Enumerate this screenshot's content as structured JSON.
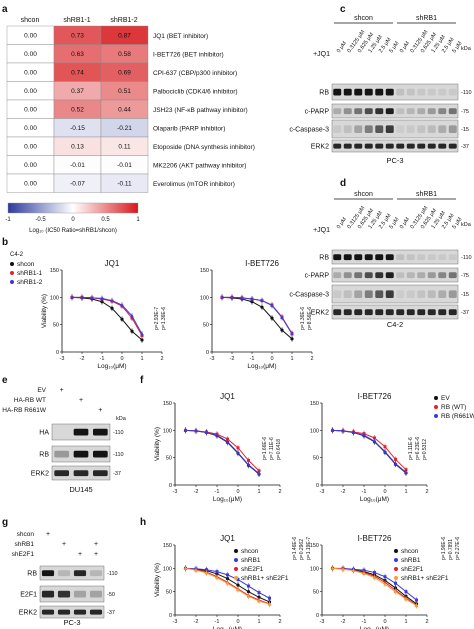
{
  "heatmap": {
    "panel": "a",
    "columns": [
      "shcon",
      "shRB1-1",
      "shRB1-2"
    ],
    "rows": [
      {
        "drug": "JQ1 (BET inhibitor)",
        "values": [
          "0.00",
          "0.73",
          "0.87"
        ],
        "num": [
          0,
          0.73,
          0.87
        ]
      },
      {
        "drug": "I-BET726 (BET inhibitor)",
        "values": [
          "0.00",
          "0.63",
          "0.58"
        ],
        "num": [
          0,
          0.63,
          0.58
        ]
      },
      {
        "drug": "CPI-637 (CBP/p300 inhibitor)",
        "values": [
          "0.00",
          "0.74",
          "0.69"
        ],
        "num": [
          0,
          0.74,
          0.69
        ]
      },
      {
        "drug": "Palbociclib (CDK4/6 inhibitor)",
        "values": [
          "0.00",
          "0.37",
          "0.51"
        ],
        "num": [
          0,
          0.37,
          0.51
        ]
      },
      {
        "drug": "JSH23 (NF-κB pathway inhibitor)",
        "values": [
          "0.00",
          "0.52",
          "0.44"
        ],
        "num": [
          0,
          0.52,
          0.44
        ]
      },
      {
        "drug": "Olaparib (PARP inhibitor)",
        "values": [
          "0.00",
          "-0.15",
          "-0.21"
        ],
        "num": [
          0,
          -0.15,
          -0.21
        ]
      },
      {
        "drug": "Etoposide (DNA synthesis inhibitor)",
        "values": [
          "0.00",
          "0.13",
          "0.11"
        ],
        "num": [
          0,
          0.13,
          0.11
        ]
      },
      {
        "drug": "MK2206 (AKT pathway inhibitor)",
        "values": [
          "0.00",
          "-0.01",
          "-0.01"
        ],
        "num": [
          0,
          -0.01,
          -0.01
        ]
      },
      {
        "drug": "Everolimus (mTOR inhibitor)",
        "values": [
          "0.00",
          "-0.07",
          "-0.11"
        ],
        "num": [
          0,
          -0.07,
          -0.11
        ]
      }
    ],
    "colorbar_ticks": [
      "-1",
      "-0.5",
      "0",
      "0.5",
      "1"
    ],
    "colorbar_label": "Log₁₀ (IC50 Ratio=shRB1/shcon)",
    "colors": {
      "neg": "#2b3a9c",
      "mid": "#ffffff",
      "pos": "#d7191c"
    }
  },
  "blot_c": {
    "panel": "c",
    "groups": [
      "shcon",
      "shRB1"
    ],
    "doses": [
      "0 μM",
      "0.3125 μM",
      "0.625 μM",
      "1.25 μM",
      "2.5 μM",
      "5 μM"
    ],
    "treatment": "+JQ1",
    "bands": [
      "RB",
      "c-PARP",
      "c-Caspase-3",
      "ERK2"
    ],
    "kda": [
      "kDa",
      "110",
      "75",
      "15",
      "37"
    ],
    "cell_line": "PC-3"
  },
  "blot_d": {
    "panel": "d",
    "groups": [
      "shcon",
      "shRB1"
    ],
    "doses": [
      "0 μM",
      "0.3125 μM",
      "0.625 μM",
      "1.25 μM",
      "2.5 μM",
      "5 μM"
    ],
    "treatment": "+JQ1",
    "bands": [
      "RB",
      "c-PARP",
      "c-Caspase-3",
      "ERK2"
    ],
    "kda": [
      "kDa",
      "110",
      "75",
      "15",
      "37"
    ],
    "cell_line": "C4-2"
  },
  "blot_e": {
    "panel": "e",
    "conditions": [
      "EV",
      "HA-RB WT",
      "HA-RB R661W"
    ],
    "plus": [
      "+",
      "+",
      "+"
    ],
    "bands": [
      "HA",
      "RB",
      "ERK2"
    ],
    "kda": [
      "kDa",
      "110",
      "110",
      "37"
    ],
    "cell_line": "DU145"
  },
  "blot_g": {
    "panel": "g",
    "conditions": [
      "shcon",
      "shRB1",
      "shE2F1"
    ],
    "plus": [
      "+",
      "+",
      "+",
      "+",
      "+",
      "+"
    ],
    "bands": [
      "RB",
      "E2F1",
      "ERK2"
    ],
    "kda": [
      "110",
      "50",
      "37"
    ],
    "cell_line": "PC-3"
  },
  "chart_data": [
    {
      "panel": "b",
      "type": "line",
      "cell_line": "C4-2",
      "title": "JQ1",
      "xlabel": "Log₁₀(μM)",
      "ylabel": "Viability (%)",
      "xlim": [
        -3,
        2
      ],
      "ylim": [
        0,
        150
      ],
      "xticks": [
        "-3",
        "-2",
        "-1",
        "0",
        "1",
        "2"
      ],
      "yticks": [
        "0",
        "50",
        "100",
        "150"
      ],
      "legend": [
        "shcon",
        "shRB1-1",
        "shRB1-2"
      ],
      "colors": [
        "#111111",
        "#e8202a",
        "#3a3ad8"
      ],
      "x": [
        -2.5,
        -2,
        -1.5,
        -1,
        -0.5,
        0,
        0.5,
        1
      ],
      "series": [
        {
          "name": "shcon",
          "values": [
            100,
            99,
            97,
            92,
            80,
            60,
            38,
            22
          ]
        },
        {
          "name": "shRB1-1",
          "values": [
            100,
            100,
            99,
            97,
            93,
            84,
            62,
            30
          ]
        },
        {
          "name": "shRB1-2",
          "values": [
            100,
            100,
            99,
            98,
            94,
            86,
            66,
            33
          ]
        }
      ],
      "pvalues": [
        "p=2.93E-7",
        "p=1.36E-6"
      ]
    },
    {
      "panel": "b",
      "type": "line",
      "cell_line": "C4-2",
      "title": "I-BET726",
      "xlabel": "Log₁₀(μM)",
      "ylabel": "",
      "xlim": [
        -3,
        2
      ],
      "ylim": [
        0,
        150
      ],
      "xticks": [
        "-3",
        "-2",
        "-1",
        "0",
        "1",
        "2"
      ],
      "yticks": [
        "0",
        "50",
        "100",
        "150"
      ],
      "legend": [],
      "colors": [
        "#111111",
        "#e8202a",
        "#3a3ad8"
      ],
      "x": [
        -2.5,
        -2,
        -1.5,
        -1,
        -0.5,
        0,
        0.5,
        1
      ],
      "series": [
        {
          "name": "shcon",
          "values": [
            100,
            99,
            97,
            92,
            82,
            62,
            40,
            24
          ]
        },
        {
          "name": "shRB1-1",
          "values": [
            100,
            100,
            99,
            97,
            94,
            86,
            64,
            34
          ]
        },
        {
          "name": "shRB1-2",
          "values": [
            100,
            100,
            99,
            97,
            94,
            85,
            63,
            33
          ]
        }
      ],
      "pvalues": [
        "p=1.36E-6",
        "p=8.56E-6"
      ]
    },
    {
      "panel": "f",
      "type": "line",
      "cell_line": "DU145",
      "title": "JQ1",
      "xlabel": "Log₁₀(μM)",
      "ylabel": "Viability (%)",
      "xlim": [
        -3,
        2
      ],
      "ylim": [
        0,
        150
      ],
      "xticks": [
        "-3",
        "-2",
        "-1",
        "0",
        "1",
        "2"
      ],
      "yticks": [
        "0",
        "50",
        "100",
        "150"
      ],
      "legend": [],
      "colors": [
        "#111111",
        "#e8202a",
        "#3a3ad8"
      ],
      "x": [
        -2.5,
        -2,
        -1.5,
        -1,
        -0.5,
        0,
        0.5,
        1
      ],
      "series": [
        {
          "name": "EV",
          "values": [
            100,
            99,
            96,
            90,
            78,
            58,
            36,
            20
          ]
        },
        {
          "name": "RB (WT)",
          "values": [
            100,
            99,
            97,
            93,
            84,
            68,
            45,
            26
          ]
        },
        {
          "name": "RB (R661W)",
          "values": [
            100,
            99,
            96,
            91,
            79,
            59,
            37,
            21
          ]
        }
      ],
      "pvalues": [
        "p=1.66E-6",
        "p=7.11E-6",
        "p=0.6418"
      ]
    },
    {
      "panel": "f",
      "type": "line",
      "cell_line": "DU145",
      "title": "I-BET726",
      "xlabel": "Log₁₀(μM)",
      "ylabel": "",
      "xlim": [
        -3,
        2
      ],
      "ylim": [
        0,
        150
      ],
      "xticks": [
        "-3",
        "-2",
        "-1",
        "0",
        "1",
        "2"
      ],
      "yticks": [
        "0",
        "50",
        "100",
        "150"
      ],
      "legend": [
        "EV",
        "RB (WT)",
        "RB (R661W)"
      ],
      "colors": [
        "#111111",
        "#e8202a",
        "#3a3ad8"
      ],
      "x": [
        -2.5,
        -2,
        -1.5,
        -1,
        -0.5,
        0,
        0.5,
        1
      ],
      "series": [
        {
          "name": "EV",
          "values": [
            100,
            99,
            96,
            90,
            79,
            60,
            38,
            22
          ]
        },
        {
          "name": "RB (WT)",
          "values": [
            100,
            99,
            97,
            94,
            86,
            70,
            47,
            28
          ]
        },
        {
          "name": "RB (R661W)",
          "values": [
            100,
            99,
            96,
            91,
            80,
            61,
            39,
            23
          ]
        }
      ],
      "pvalues": [
        "p=1.11E-6",
        "p=6.23E-6",
        "p=0.5312"
      ]
    },
    {
      "panel": "h",
      "type": "line",
      "cell_line": "PC-3",
      "title": "JQ1",
      "xlabel": "Log₁₀(μM)",
      "ylabel": "Viability (%)",
      "xlim": [
        -3,
        2
      ],
      "ylim": [
        0,
        150
      ],
      "xticks": [
        "-3",
        "-2",
        "-1",
        "0",
        "1",
        "2"
      ],
      "yticks": [
        "0",
        "50",
        "100",
        "150"
      ],
      "legend": [
        "shcon",
        "shRB1",
        "shE2F1",
        "shRB1+ shE2F1"
      ],
      "colors": [
        "#111111",
        "#3a3ad8",
        "#e8202a",
        "#f2a03a"
      ],
      "x": [
        -2.5,
        -2,
        -1.5,
        -1,
        -0.5,
        0,
        0.5,
        1,
        1.5
      ],
      "series": [
        {
          "name": "shcon",
          "values": [
            100,
            98,
            95,
            88,
            78,
            64,
            50,
            38,
            28
          ]
        },
        {
          "name": "shRB1",
          "values": [
            100,
            99,
            97,
            93,
            86,
            76,
            62,
            48,
            36
          ]
        },
        {
          "name": "shE2F1",
          "values": [
            100,
            97,
            92,
            82,
            70,
            56,
            42,
            32,
            24
          ]
        },
        {
          "name": "shRB1+ shE2F1",
          "values": [
            100,
            96,
            90,
            80,
            68,
            54,
            40,
            30,
            23
          ]
        }
      ],
      "pvalues": [
        "p=1.46E-6",
        "p=0.2962",
        "p=1.19E-7"
      ]
    },
    {
      "panel": "h",
      "type": "line",
      "cell_line": "PC-3",
      "title": "I-BET726",
      "xlabel": "Log₁₀(μM)",
      "ylabel": "",
      "xlim": [
        -3,
        2
      ],
      "ylim": [
        0,
        150
      ],
      "xticks": [
        "-3",
        "-2",
        "-1",
        "0",
        "1",
        "2"
      ],
      "yticks": [
        "0",
        "50",
        "100",
        "150"
      ],
      "legend": [
        "shcon",
        "shRB1",
        "shE2F1",
        "shRB1+ shE2F1"
      ],
      "colors": [
        "#111111",
        "#3a3ad8",
        "#e8202a",
        "#f2a03a"
      ],
      "x": [
        -2.5,
        -2,
        -1.5,
        -1,
        -0.5,
        0,
        0.5,
        1,
        1.5
      ],
      "series": [
        {
          "name": "shcon",
          "values": [
            100,
            99,
            97,
            93,
            86,
            74,
            58,
            40,
            24
          ]
        },
        {
          "name": "shRB1",
          "values": [
            100,
            100,
            98,
            96,
            91,
            82,
            68,
            50,
            32
          ]
        },
        {
          "name": "shE2F1",
          "values": [
            100,
            99,
            96,
            91,
            83,
            70,
            53,
            36,
            21
          ]
        },
        {
          "name": "shRB1+ shE2F1",
          "values": [
            100,
            98,
            95,
            89,
            80,
            66,
            50,
            34,
            20
          ]
        }
      ],
      "pvalues": [
        "p=1.96E-6",
        "p=0.7891",
        "p=2.27E-6"
      ]
    }
  ]
}
